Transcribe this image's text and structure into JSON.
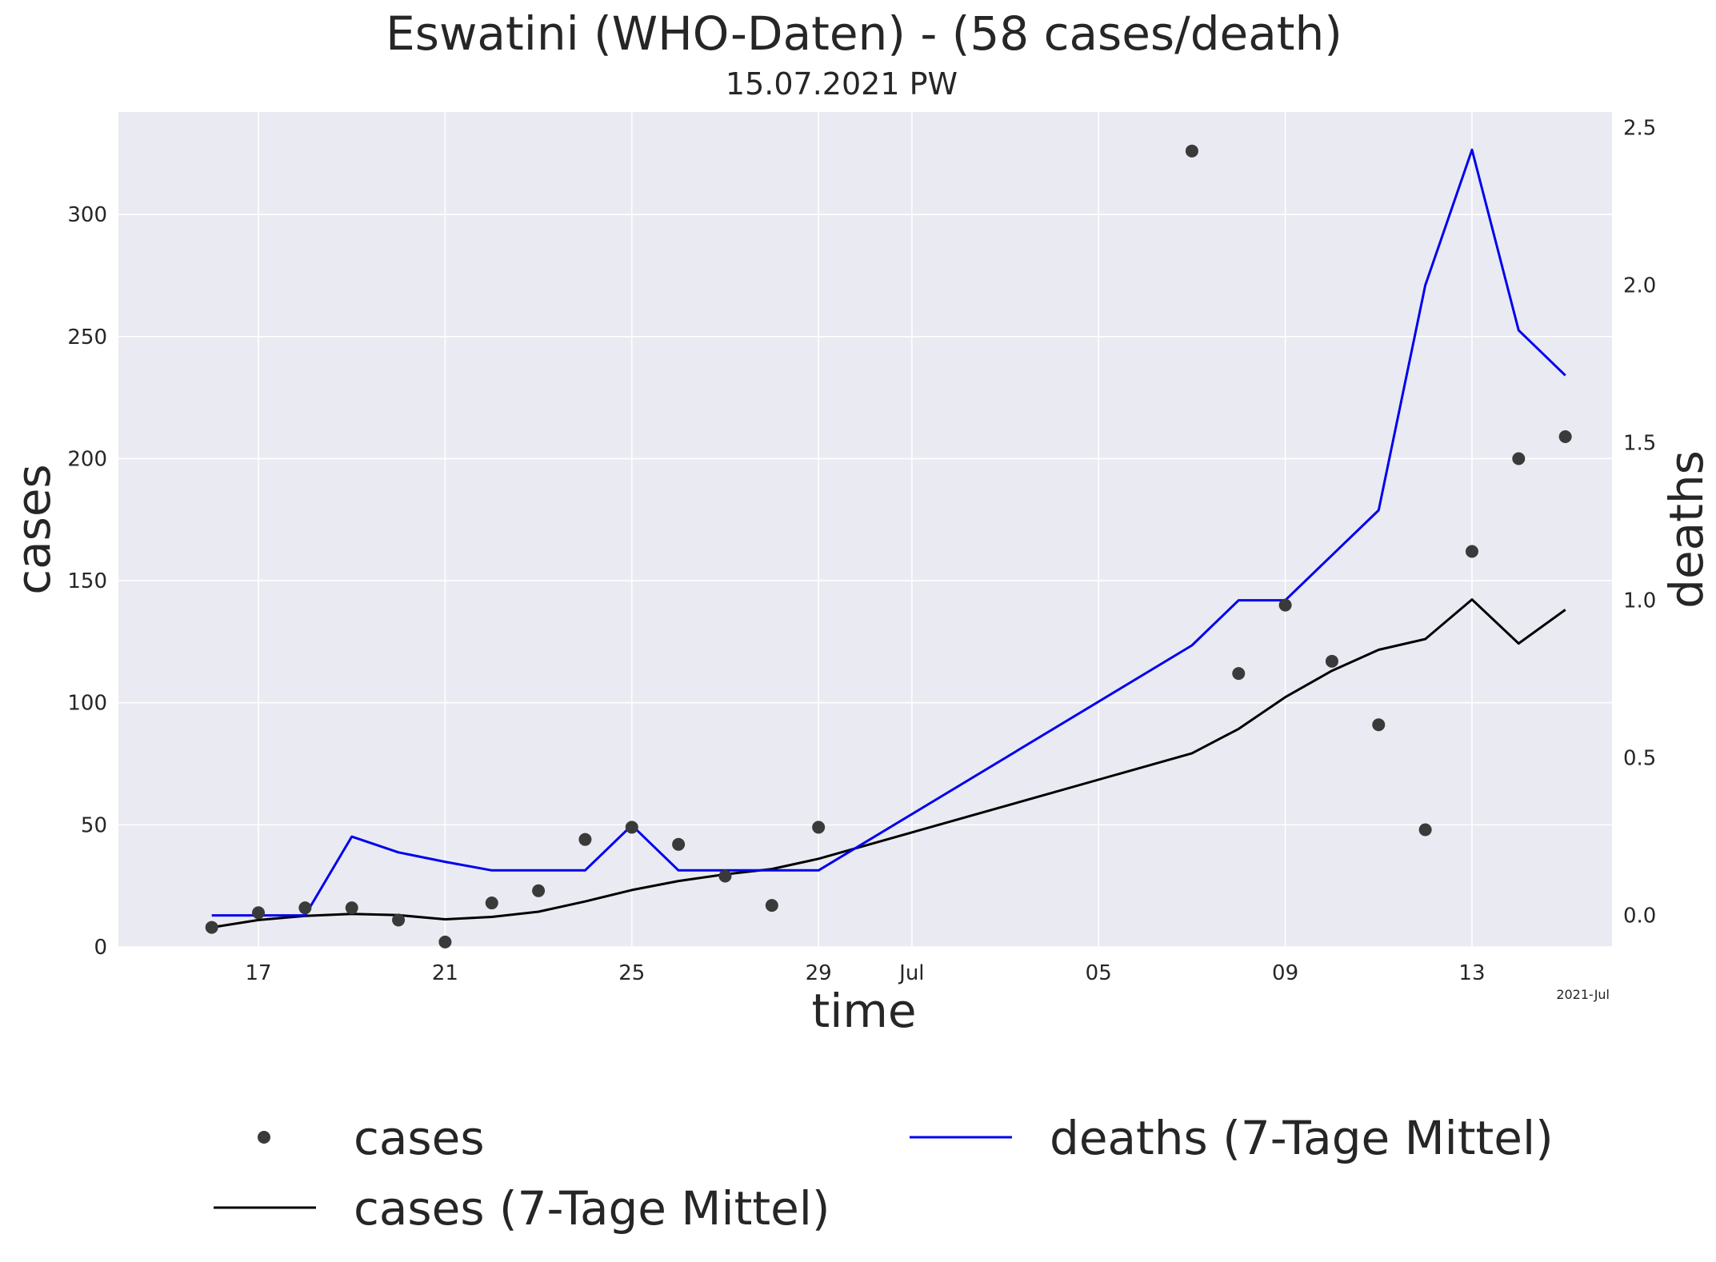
{
  "chart_data": {
    "type": "line",
    "title": "Eswatini (WHO-Daten) - (58 cases/death)",
    "subtitle": "15.07.2021 PW",
    "xlabel": "time",
    "ylabel": "cases",
    "y2label": "deaths",
    "x_offset_label": "2021-Jul",
    "xlim": [
      "2021-06-14",
      "2021-07-16"
    ],
    "ylim": [
      0,
      342
    ],
    "y2lim": [
      -0.1,
      2.55
    ],
    "x_ticks": [
      {
        "date": "2021-06-17",
        "label": "17"
      },
      {
        "date": "2021-06-21",
        "label": "21"
      },
      {
        "date": "2021-06-25",
        "label": "25"
      },
      {
        "date": "2021-06-29",
        "label": "29"
      },
      {
        "date": "2021-07-01",
        "label": "Jul"
      },
      {
        "date": "2021-07-05",
        "label": "05"
      },
      {
        "date": "2021-07-09",
        "label": "09"
      },
      {
        "date": "2021-07-13",
        "label": "13"
      }
    ],
    "y_ticks": [
      {
        "value": 0,
        "label": "0"
      },
      {
        "value": 50,
        "label": "50"
      },
      {
        "value": 100,
        "label": "100"
      },
      {
        "value": 150,
        "label": "150"
      },
      {
        "value": 200,
        "label": "200"
      },
      {
        "value": 250,
        "label": "250"
      },
      {
        "value": 300,
        "label": "300"
      }
    ],
    "y2_ticks": [
      {
        "value": 0.0,
        "label": "0.0"
      },
      {
        "value": 0.5,
        "label": "0.5"
      },
      {
        "value": 1.0,
        "label": "1.0"
      },
      {
        "value": 1.5,
        "label": "1.5"
      },
      {
        "value": 2.0,
        "label": "2.0"
      },
      {
        "value": 2.5,
        "label": "2.5"
      }
    ],
    "grid": true,
    "legend_position": "bottom",
    "colors": {
      "plot_background": "#eaeaf2",
      "grid": "#ffffff",
      "cases_points": "#3a3a3a",
      "cases_avg": "#000000",
      "deaths_avg": "#0000ee",
      "y2_label": "#0000ee"
    },
    "series": [
      {
        "name": "cases",
        "kind": "scatter",
        "axis": "left",
        "points": [
          [
            "2021-06-16",
            8
          ],
          [
            "2021-06-17",
            14
          ],
          [
            "2021-06-18",
            16
          ],
          [
            "2021-06-19",
            16
          ],
          [
            "2021-06-20",
            11
          ],
          [
            "2021-06-21",
            2
          ],
          [
            "2021-06-22",
            18
          ],
          [
            "2021-06-23",
            23
          ],
          [
            "2021-06-24",
            44
          ],
          [
            "2021-06-25",
            49
          ],
          [
            "2021-06-26",
            42
          ],
          [
            "2021-06-27",
            29
          ],
          [
            "2021-06-28",
            17
          ],
          [
            "2021-06-29",
            49
          ],
          [
            "2021-07-07",
            326
          ],
          [
            "2021-07-08",
            112
          ],
          [
            "2021-07-09",
            140
          ],
          [
            "2021-07-10",
            117
          ],
          [
            "2021-07-11",
            91
          ],
          [
            "2021-07-12",
            48
          ],
          [
            "2021-07-13",
            162
          ],
          [
            "2021-07-14",
            200
          ],
          [
            "2021-07-15",
            209
          ]
        ]
      },
      {
        "name": "cases (7-Tage Mittel)",
        "kind": "line",
        "axis": "left",
        "points": [
          [
            "2021-06-16",
            8
          ],
          [
            "2021-06-17",
            11
          ],
          [
            "2021-06-18",
            12.7
          ],
          [
            "2021-06-19",
            13.5
          ],
          [
            "2021-06-20",
            13
          ],
          [
            "2021-06-21",
            11.3
          ],
          [
            "2021-06-22",
            12.3
          ],
          [
            "2021-06-23",
            14.4
          ],
          [
            "2021-06-24",
            18.6
          ],
          [
            "2021-06-25",
            23.3
          ],
          [
            "2021-06-26",
            27
          ],
          [
            "2021-06-27",
            29.7
          ],
          [
            "2021-06-28",
            31.9
          ],
          [
            "2021-06-29",
            36.1
          ],
          [
            "2021-07-07",
            79.3
          ],
          [
            "2021-07-08",
            89.3
          ],
          [
            "2021-07-09",
            102.3
          ],
          [
            "2021-07-10",
            113.1
          ],
          [
            "2021-07-11",
            121.7
          ],
          [
            "2021-07-12",
            126.1
          ],
          [
            "2021-07-13",
            142.3
          ],
          [
            "2021-07-14",
            124.3
          ],
          [
            "2021-07-15",
            138.1
          ]
        ]
      },
      {
        "name": "deaths (7-Tage Mittel)",
        "kind": "line",
        "axis": "right",
        "points": [
          [
            "2021-06-16",
            0
          ],
          [
            "2021-06-17",
            0
          ],
          [
            "2021-06-18",
            0
          ],
          [
            "2021-06-19",
            0.25
          ],
          [
            "2021-06-20",
            0.2
          ],
          [
            "2021-06-21",
            0.17
          ],
          [
            "2021-06-22",
            0.143
          ],
          [
            "2021-06-23",
            0.143
          ],
          [
            "2021-06-24",
            0.143
          ],
          [
            "2021-06-25",
            0.286
          ],
          [
            "2021-06-26",
            0.143
          ],
          [
            "2021-06-27",
            0.143
          ],
          [
            "2021-06-28",
            0.143
          ],
          [
            "2021-06-29",
            0.143
          ],
          [
            "2021-07-07",
            0.857
          ],
          [
            "2021-07-08",
            1.0
          ],
          [
            "2021-07-09",
            1.0
          ],
          [
            "2021-07-10",
            1.143
          ],
          [
            "2021-07-11",
            1.286
          ],
          [
            "2021-07-12",
            2.0
          ],
          [
            "2021-07-13",
            2.43
          ],
          [
            "2021-07-14",
            1.857
          ],
          [
            "2021-07-15",
            1.714
          ]
        ]
      }
    ]
  }
}
